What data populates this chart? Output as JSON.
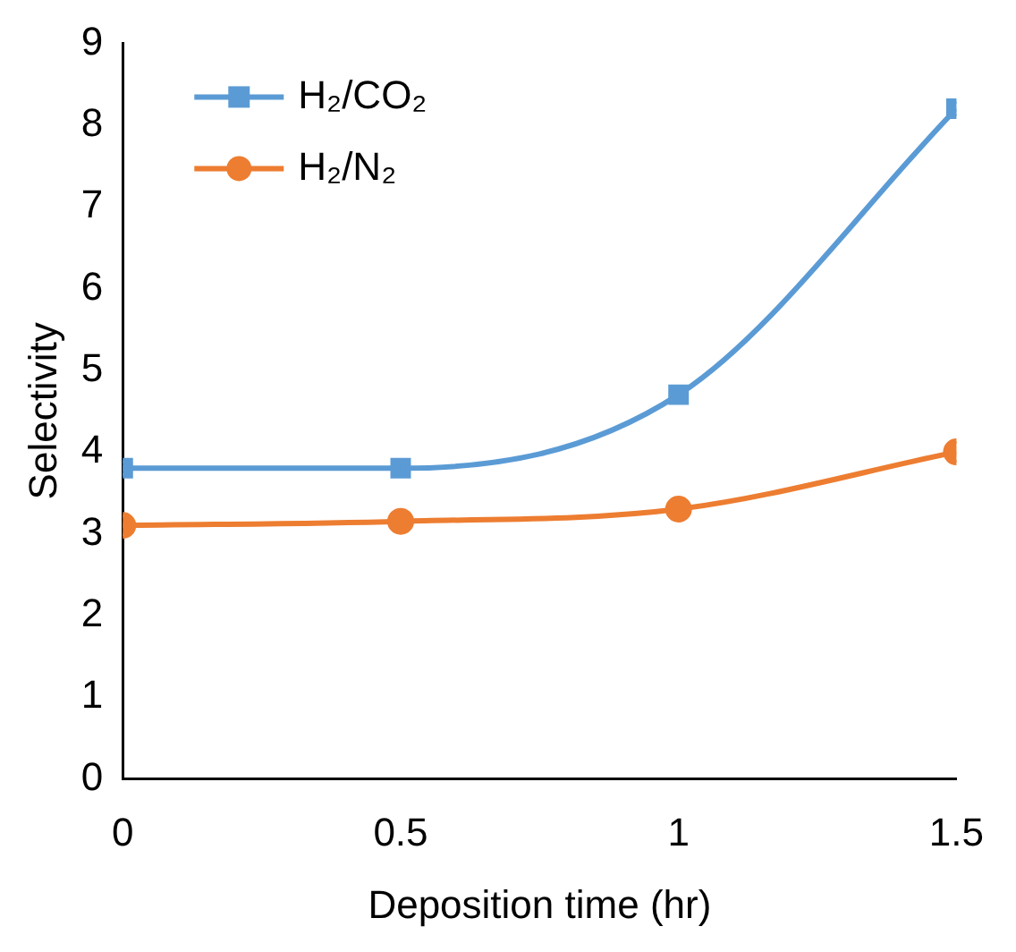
{
  "chart_data": {
    "type": "line",
    "xlabel": "Deposition time (hr)",
    "ylabel": "Selectivity",
    "x": [
      0,
      0.5,
      1,
      1.5
    ],
    "series": [
      {
        "name": "H₂/CO₂",
        "color": "#5b9bd5",
        "marker": "square",
        "values": [
          3.8,
          3.8,
          4.7,
          8.2
        ]
      },
      {
        "name": "H₂/N₂",
        "color": "#ed7d31",
        "marker": "circle",
        "values": [
          3.1,
          3.15,
          3.3,
          4.0
        ]
      }
    ],
    "xlim": [
      0,
      1.5
    ],
    "xticks": [
      0,
      0.5,
      1,
      1.5
    ],
    "ylim": [
      0,
      9
    ],
    "yticks": [
      0,
      1,
      2,
      3,
      4,
      5,
      6,
      7,
      8,
      9
    ],
    "grid": false,
    "legend": "top left"
  }
}
